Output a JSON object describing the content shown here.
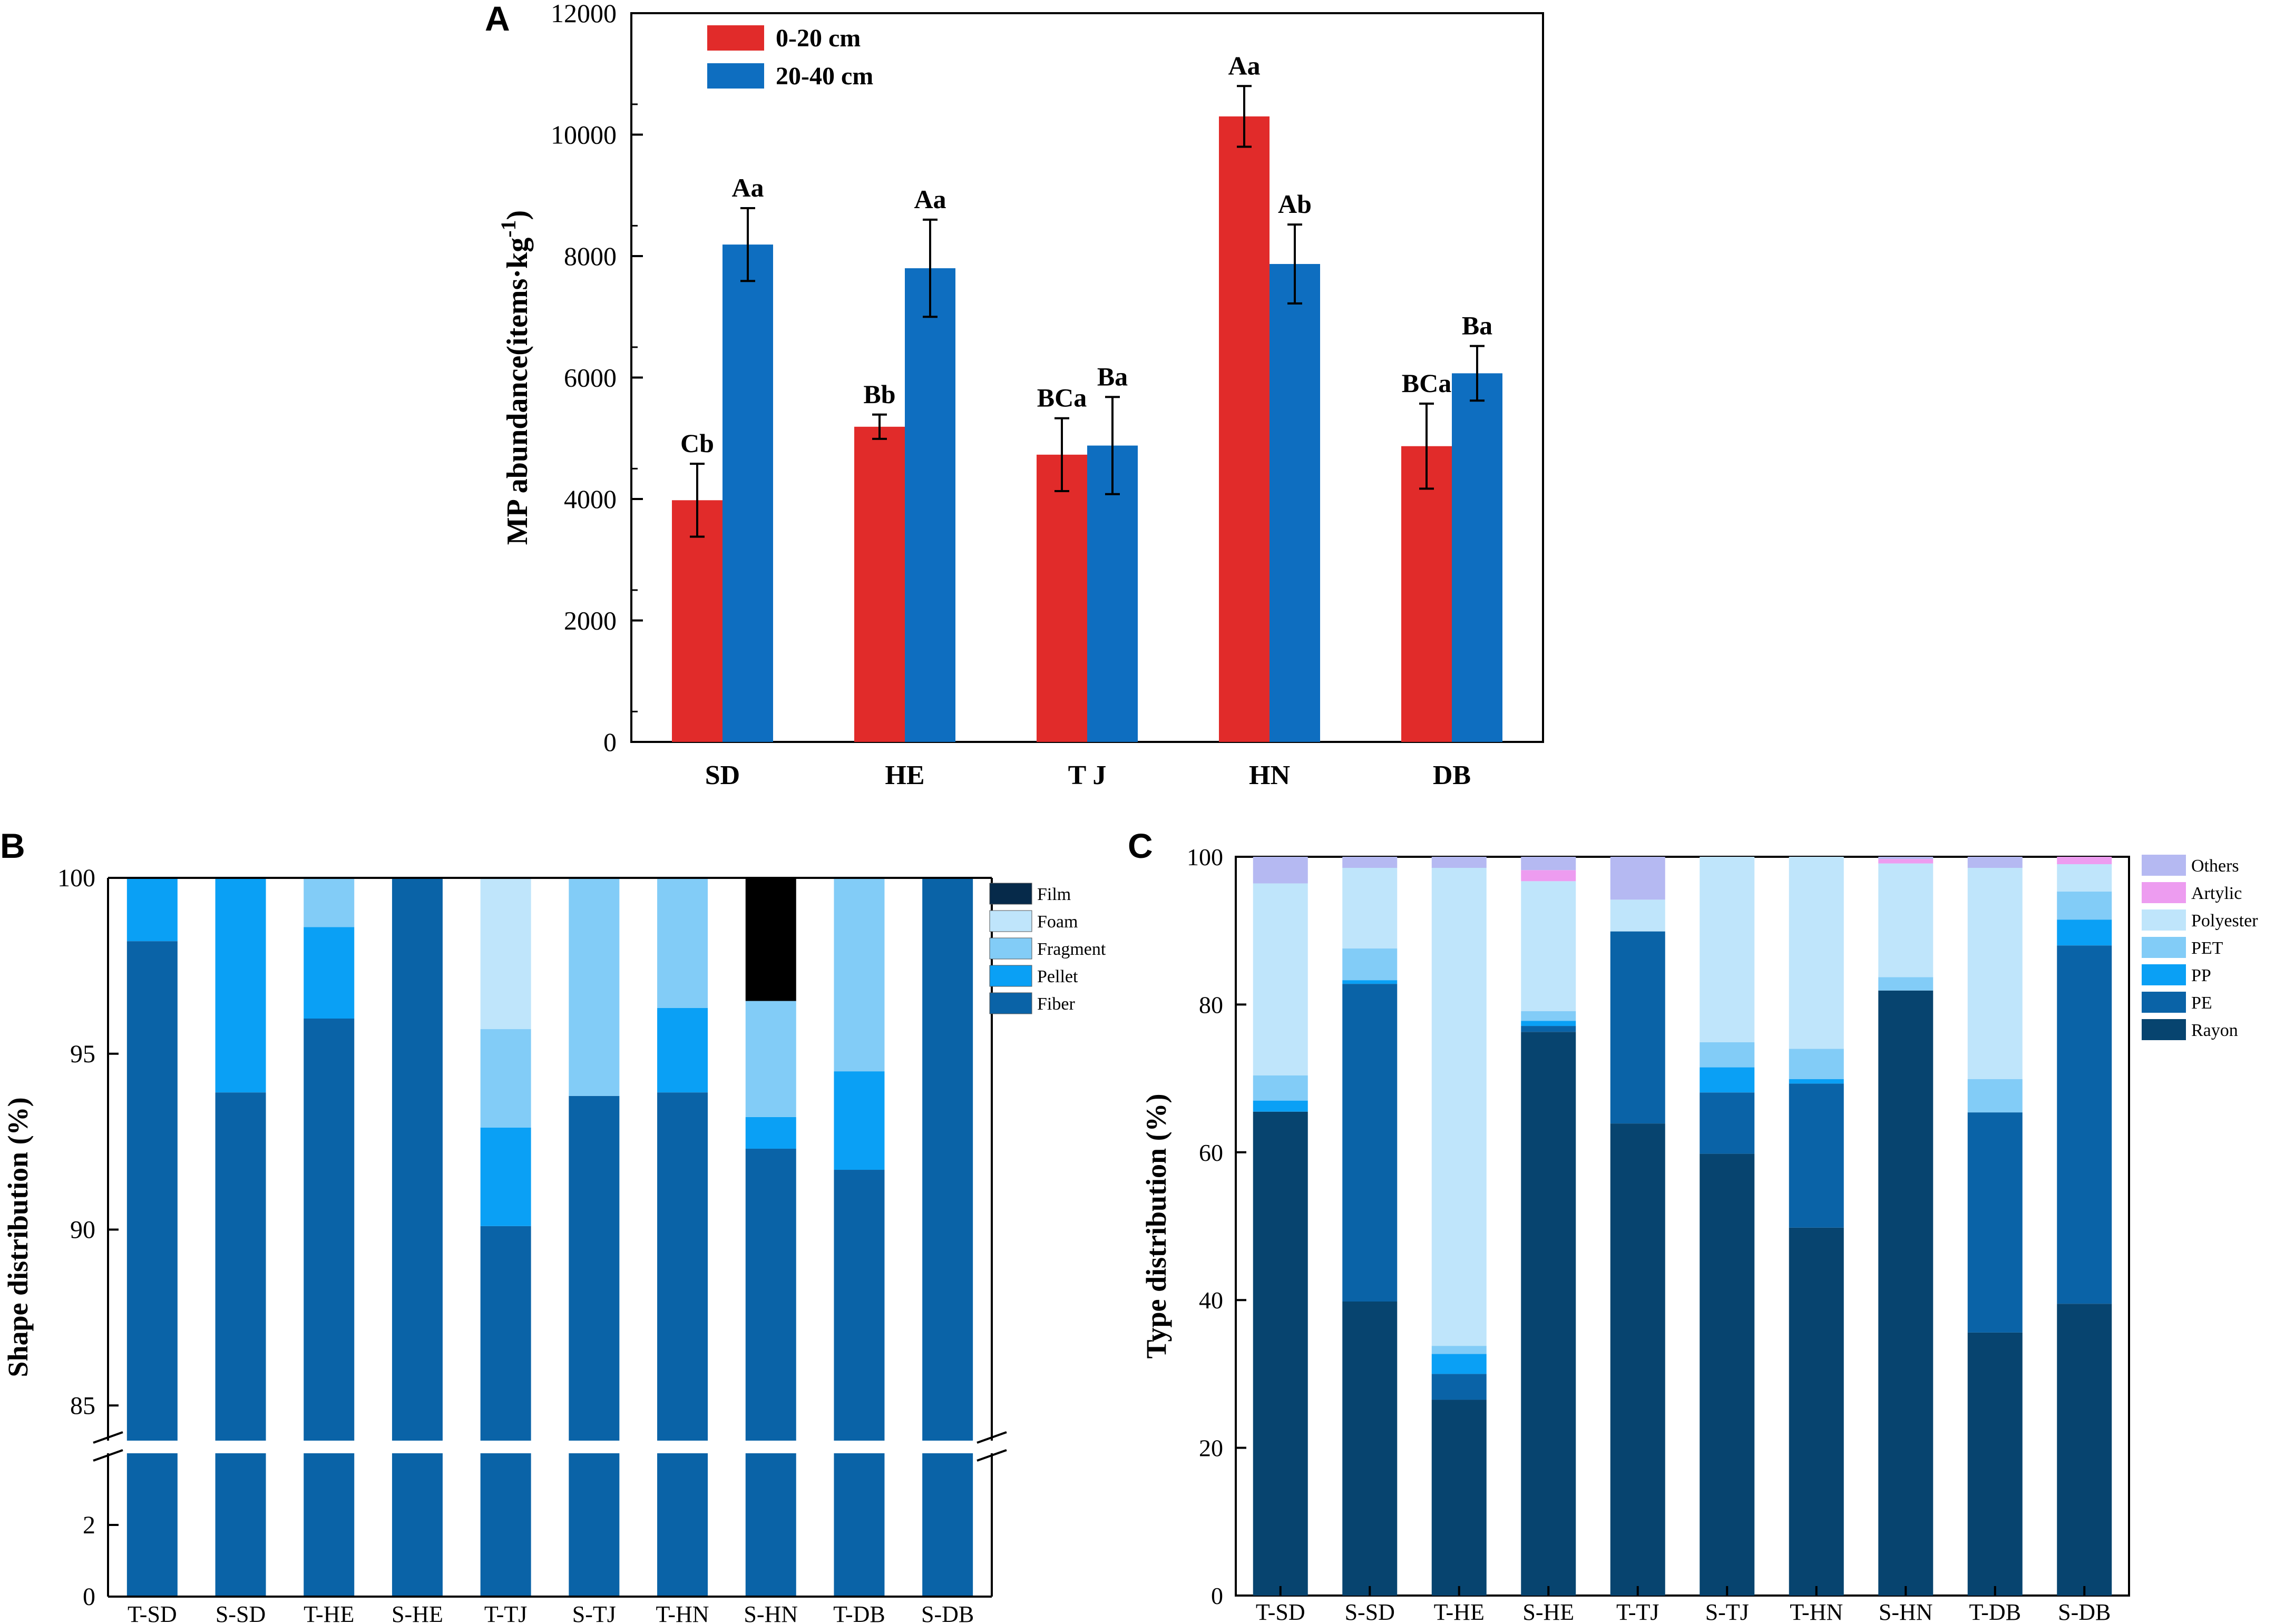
{
  "chart_data": [
    {
      "panel": "A",
      "type": "bar",
      "ylabel": "MP abundance(items·kg",
      "ylabel_sup": "-1",
      "ylabel_close": ")",
      "ylim": [
        0,
        12000
      ],
      "yticks": [
        0,
        2000,
        4000,
        6000,
        8000,
        10000,
        12000
      ],
      "categories": [
        "SD",
        "HE",
        "TJ",
        "HN",
        "DB"
      ],
      "category_display": [
        "SD",
        "HE",
        "T J",
        "HN",
        "DB"
      ],
      "series": [
        {
          "name": "0-20 cm",
          "color": "#e12b2a",
          "values": [
            3980,
            5190,
            4730,
            10300,
            4870
          ],
          "errors": [
            600,
            200,
            600,
            500,
            700
          ],
          "labels": [
            "Cb",
            "Bb",
            "BCa",
            "Aa",
            "BCa"
          ]
        },
        {
          "name": "20-40 cm",
          "color": "#0e6ec0",
          "values": [
            8190,
            7800,
            4880,
            7870,
            6070
          ],
          "errors": [
            600,
            800,
            800,
            650,
            450
          ],
          "labels": [
            "Aa",
            "Aa",
            "Ba",
            "Ab",
            "Ba"
          ]
        }
      ]
    },
    {
      "panel": "B",
      "type": "bar",
      "stacked": true,
      "ylabel": "Shape distribution (%)",
      "ylim_upper": [
        84,
        100
      ],
      "ylim_lower": [
        0,
        4
      ],
      "yticks_upper": [
        85,
        90,
        95,
        100
      ],
      "yticks_lower": [
        0,
        2
      ],
      "categories": [
        "T-SD",
        "S-SD",
        "T-HE",
        "S-HE",
        "T-TJ",
        "S-TJ",
        "T-HN",
        "S-HN",
        "T-DB",
        "S-DB"
      ],
      "category_display": [
        "T-SD",
        "S-SD",
        "T-HE",
        "S-HE",
        "T-TJ",
        "S-TJ",
        "T-HN",
        "S-HN",
        "T-DB",
        "S-DB"
      ],
      "series": [
        {
          "name": "Fiber",
          "color": "#0a63a7",
          "values": [
            98.2,
            93.9,
            96.0,
            100,
            90.1,
            93.8,
            93.9,
            92.3,
            91.7,
            100
          ]
        },
        {
          "name": "Pellet",
          "color": "#0aa0f5",
          "values": [
            1.8,
            6.1,
            2.6,
            0,
            2.8,
            0,
            2.4,
            0.9,
            2.8,
            0
          ]
        },
        {
          "name": "Fragment",
          "color": "#82ccf7",
          "values": [
            0,
            0,
            1.4,
            0,
            2.8,
            6.2,
            3.7,
            3.3,
            5.5,
            0
          ]
        },
        {
          "name": "Foam",
          "color": "#bfe5fb",
          "values": [
            0,
            0,
            0,
            0,
            4.3,
            0,
            0,
            0,
            0,
            0
          ]
        },
        {
          "name": "Film",
          "color": "#000000",
          "values": [
            0,
            0,
            0,
            0,
            0,
            0,
            0,
            3.5,
            0,
            0
          ]
        }
      ],
      "legend_order": [
        "Film",
        "Foam",
        "Fragment",
        "Pellet",
        "Fiber"
      ],
      "legend_colors": [
        "#062a4a",
        "#bfe5fb",
        "#82ccf7",
        "#0aa0f5",
        "#0a63a7"
      ]
    },
    {
      "panel": "C",
      "type": "bar",
      "stacked": true,
      "ylabel": "Type distribution (%)",
      "ylim": [
        0,
        100
      ],
      "yticks": [
        0,
        20,
        40,
        60,
        80,
        100
      ],
      "categories": [
        "T-SD",
        "S-SD",
        "T-HE",
        "S-HE",
        "T-TJ",
        "S-TJ",
        "T-HN",
        "S-HN",
        "T-DB",
        "S-DB"
      ],
      "category_display": [
        "T-SD",
        "S-SD",
        "T-HE",
        "S-HE",
        "T-TJ",
        "S-TJ",
        "T-HN",
        "S-HN",
        "T-DB",
        "S-DB"
      ],
      "series": [
        {
          "name": "Rayon",
          "color": "#07446f",
          "values": [
            65.5,
            39.8,
            26.5,
            76.3,
            63.9,
            59.8,
            49.8,
            81.9,
            35.6,
            39.5
          ]
        },
        {
          "name": "PE",
          "color": "#0a63a7",
          "values": [
            0,
            43.0,
            3.5,
            0.8,
            26.0,
            8.3,
            19.5,
            0,
            29.8,
            48.5
          ]
        },
        {
          "name": "PP",
          "color": "#0aa0f5",
          "values": [
            1.5,
            0.5,
            2.7,
            0.7,
            0,
            3.4,
            0.6,
            0,
            0,
            3.5
          ]
        },
        {
          "name": "PET",
          "color": "#82ccf7",
          "values": [
            3.4,
            4.3,
            1.1,
            1.3,
            0,
            3.4,
            4.1,
            1.8,
            4.5,
            3.8
          ]
        },
        {
          "name": "Polyester",
          "color": "#bfe5fb",
          "values": [
            26.0,
            10.9,
            64.7,
            17.6,
            4.3,
            25.1,
            26.0,
            15.4,
            28.6,
            3.7
          ]
        },
        {
          "name": "Artylic",
          "color": "#ed9cf0",
          "values": [
            0,
            0,
            0,
            1.5,
            0,
            0,
            0,
            0.6,
            0,
            1.0
          ]
        },
        {
          "name": "Others",
          "color": "#b5b9f2",
          "values": [
            3.6,
            1.5,
            1.5,
            1.8,
            5.8,
            0,
            0,
            0.3,
            1.5,
            0
          ]
        }
      ],
      "legend_order": [
        "Others",
        "Artylic",
        "Polyester",
        "PET",
        "PP",
        "PE",
        "Rayon"
      ]
    }
  ]
}
